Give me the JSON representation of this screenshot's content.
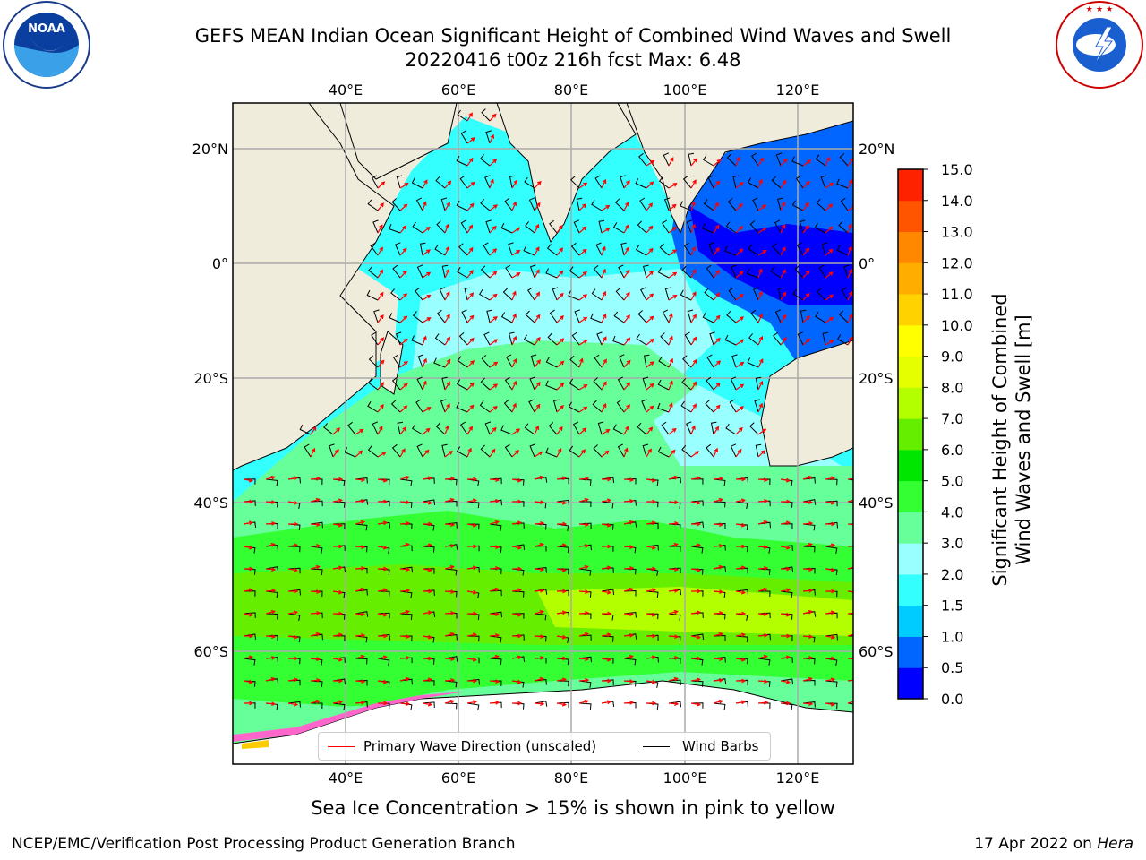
{
  "title": {
    "line1": "GEFS MEAN Indian Ocean Significant Height of Combined Wind Waves and Swell",
    "line2": "20220416 t00z 216h fcst   Max: 6.48"
  },
  "logos": {
    "left": {
      "icon": "noaa-logo",
      "text": "NOAA"
    },
    "right": {
      "icon": "nws-logo",
      "text": "NATIONAL WEATHER SERVICE"
    }
  },
  "map": {
    "lon_labels": [
      "40°E",
      "60°E",
      "80°E",
      "100°E",
      "120°E"
    ],
    "lat_labels": [
      "20°N",
      "0°",
      "20°S",
      "40°S",
      "60°S"
    ],
    "lon_values": [
      40,
      60,
      80,
      100,
      120
    ],
    "lat_values": [
      20,
      0,
      -20,
      -40,
      -60
    ],
    "colors": {
      "land": "#efecdc",
      "ice_pink": "#ff66cc",
      "ice_yellow": "#ffcc00"
    }
  },
  "colorbar": {
    "label": "Significant Height of Combined Wind Waves and Swell [m]",
    "ticks": [
      "0.0",
      "0.5",
      "1.0",
      "1.5",
      "2.0",
      "3.0",
      "4.0",
      "5.0",
      "6.0",
      "7.0",
      "8.0",
      "9.0",
      "10.0",
      "11.0",
      "12.0",
      "13.0",
      "14.0",
      "15.0"
    ],
    "colors": [
      "#0000ff",
      "#0066ff",
      "#00ccff",
      "#33ffff",
      "#99ffff",
      "#66ff99",
      "#33ff33",
      "#00e600",
      "#66ee00",
      "#b3ff00",
      "#e6ff00",
      "#ffff00",
      "#ffd200",
      "#ffae00",
      "#ff8800",
      "#ff5500",
      "#ff2200",
      "#ff0000"
    ]
  },
  "legend": {
    "wave_direction": "Primary Wave Direction (unscaled)",
    "wind_barbs": "Wind Barbs",
    "wave_color": "#ff0000",
    "barb_color": "#000000"
  },
  "ice_note": "Sea Ice Concentration > 15% is shown in pink to yellow",
  "footer": {
    "left": "NCEP/EMC/Verification Post Processing Product Generation Branch",
    "date": "17 Apr 2022 on",
    "machine": "Hera"
  }
}
